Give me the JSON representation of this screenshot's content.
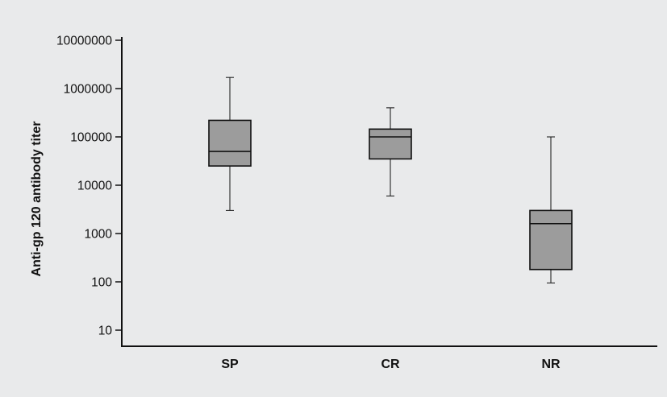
{
  "chart_data": {
    "type": "boxplot",
    "ylabel": "Anti-gp 120 antibody titer",
    "xlabel": "",
    "yscale": "log",
    "ylim": [
      5,
      10000000
    ],
    "yticks": [
      10,
      100,
      1000,
      10000,
      100000,
      1000000,
      10000000
    ],
    "ytick_labels": [
      "10",
      "100",
      "1000",
      "10000",
      "100000",
      "1000000",
      "10000000"
    ],
    "categories": [
      "SP",
      "CR",
      "NR"
    ],
    "boxes": [
      {
        "category": "SP",
        "min": 3000,
        "q1": 25000,
        "median": 50000,
        "q3": 220000,
        "max": 1700000
      },
      {
        "category": "CR",
        "min": 6000,
        "q1": 35000,
        "median": 100000,
        "q3": 145000,
        "max": 400000
      },
      {
        "category": "NR",
        "min": 95,
        "q1": 180,
        "median": 1600,
        "q3": 3000,
        "max": 100000
      }
    ],
    "colors": {
      "box_fill": "#9c9c9c",
      "stroke": "#111111",
      "background": "#e9eaeb"
    },
    "grid": false,
    "legend": "none"
  }
}
